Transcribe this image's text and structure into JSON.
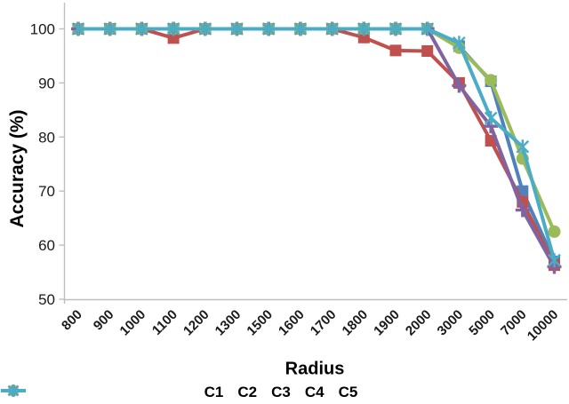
{
  "chart_data": {
    "type": "line",
    "title": "",
    "xlabel": "Radius",
    "ylabel": "Accuracy (%)",
    "categories": [
      "800",
      "900",
      "1000",
      "1100",
      "1200",
      "1300",
      "1500",
      "1600",
      "1700",
      "1800",
      "1900",
      "2000",
      "3000",
      "5000",
      "7000",
      "10000"
    ],
    "y_ticks": [
      50,
      60,
      70,
      80,
      90,
      100
    ],
    "ylim": [
      50,
      100
    ],
    "grid": false,
    "legend_position": "bottom",
    "axis_color": "#bfbfbf",
    "text_color": "#1a1a1a",
    "series": [
      {
        "name": "C1",
        "color": "#4F81BD",
        "marker": "square",
        "values": [
          100,
          100,
          100,
          100,
          100,
          100,
          100,
          100,
          100,
          100,
          100,
          100,
          96.8,
          90.3,
          70,
          57
        ]
      },
      {
        "name": "C2",
        "color": "#C0504D",
        "marker": "square",
        "values": [
          100,
          100,
          100,
          98.3,
          100,
          100,
          100,
          100,
          100,
          98.4,
          96,
          95.9,
          90,
          79.3,
          68,
          56.3
        ]
      },
      {
        "name": "C3",
        "color": "#9BBB59",
        "marker": "circle",
        "values": [
          100,
          100,
          100,
          100,
          100,
          100,
          100,
          100,
          100,
          100,
          100,
          100,
          96.5,
          90.5,
          76,
          62.5
        ]
      },
      {
        "name": "C4",
        "color": "#8064A2",
        "marker": "plus",
        "values": [
          100,
          100,
          100,
          100,
          100,
          100,
          100,
          100,
          100,
          100,
          100,
          100,
          89.5,
          82,
          66.5,
          56
        ]
      },
      {
        "name": "C5",
        "color": "#4BACC6",
        "marker": "asterisk",
        "values": [
          100,
          100,
          100,
          100,
          100,
          100,
          100,
          100,
          100,
          100,
          100,
          100,
          97.4,
          83.5,
          78.2,
          57.2
        ]
      }
    ]
  }
}
